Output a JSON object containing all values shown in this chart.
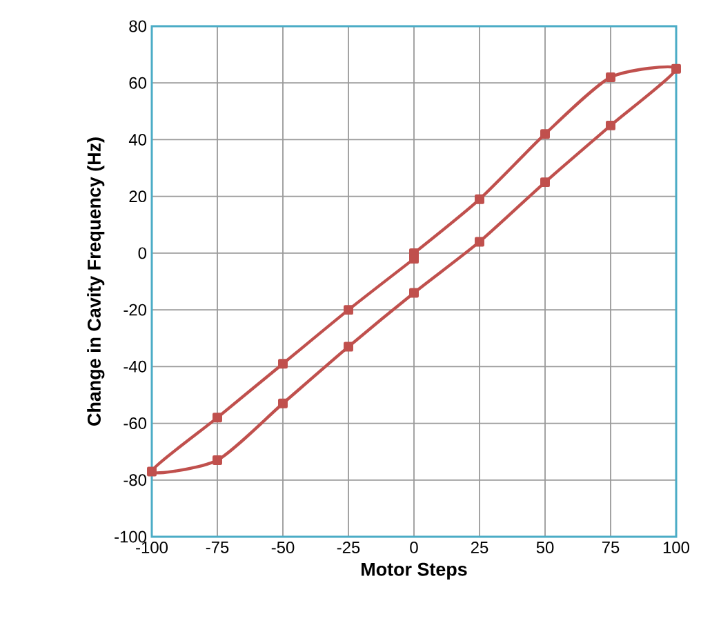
{
  "chart_data": {
    "type": "line",
    "xlabel": "Motor Steps",
    "ylabel": "Change in Cavity Frequency (Hz)",
    "series": [
      {
        "color": "#c0504d",
        "x": [
          0,
          25,
          50,
          75,
          100,
          75,
          50,
          25,
          0,
          -25,
          -50,
          -75,
          -100,
          -75,
          -50,
          -25,
          0
        ],
        "values": [
          0,
          19,
          42,
          62,
          65,
          45,
          25,
          4,
          -14,
          -33,
          -53,
          -73,
          -77,
          -58,
          -39,
          -20,
          -2
        ]
      }
    ],
    "xlim": [
      -100,
      100
    ],
    "ylim": [
      -100,
      80
    ],
    "xticks": [
      -100,
      -75,
      -50,
      -25,
      0,
      25,
      50,
      75,
      100
    ],
    "yticks": [
      -100,
      -80,
      -60,
      -40,
      -20,
      0,
      20,
      40,
      60,
      80
    ],
    "grid": true,
    "marker": "square",
    "line_style": "solid"
  }
}
